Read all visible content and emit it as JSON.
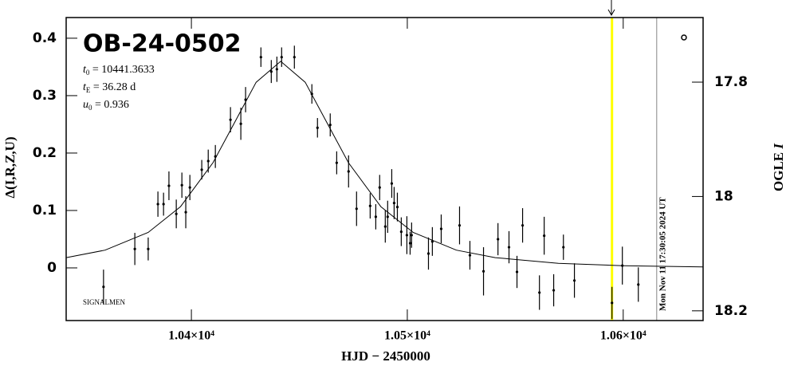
{
  "chart_data": {
    "type": "scatter",
    "title": "OB-24-0502",
    "params": [
      {
        "symbol": "t",
        "sub": "0",
        "text": " = 10441.3633"
      },
      {
        "symbol": "t",
        "sub": "E",
        "text": " = 36.28 d"
      },
      {
        "symbol": "u",
        "sub": "0",
        "text": " = 0.936"
      }
    ],
    "credit": "SIGNALMEN",
    "xlabel": "HJD − 2450000",
    "ylabel": "Δ(I,R,Z,U)",
    "y2label": {
      "text": "OGLE ",
      "italic": "I"
    },
    "xlim": [
      10342,
      10637
    ],
    "ylim": [
      -0.0917,
      0.436
    ],
    "y2lim": [
      18.217,
      17.687
    ],
    "xticks": [
      {
        "value": 10400,
        "label": "1.04×10⁴"
      },
      {
        "value": 10500,
        "label": "1.05×10⁴"
      },
      {
        "value": 10600,
        "label": "1.06×10⁴"
      }
    ],
    "yticks": [
      0,
      0.1,
      0.2,
      0.3,
      0.4
    ],
    "y2ticks": [
      17.8,
      18,
      18.2
    ],
    "series": [
      {
        "color": "#000000",
        "x": [
          10359.3,
          10373.8,
          10380.0,
          10384.5,
          10387.1,
          10389.6,
          10393.0,
          10395.6,
          10397.4,
          10399.3,
          10404.8,
          10407.8,
          10411.1,
          10418.1,
          10422.9,
          10425.1,
          10432.2,
          10437.0,
          10439.6,
          10441.8,
          10447.7,
          10455.8,
          10458.4,
          10464.3,
          10467.3,
          10472.8,
          10476.5,
          10482.8,
          10485.4,
          10487.2,
          10489.8,
          10490.9,
          10492.8,
          10493.9,
          10495.4,
          10497.2,
          10499.8,
          10501.3,
          10502.0,
          10509.8,
          10511.6,
          10515.7,
          10524.2,
          10529.0,
          10535.3,
          10542.0,
          10547.1,
          10550.8,
          10553.4,
          10561.2,
          10563.4,
          10567.8,
          10572.3,
          10577.4,
          10594.8,
          10599.6,
          10607.0
        ],
        "values": [
          -0.033,
          0.033,
          0.033,
          0.111,
          0.111,
          0.143,
          0.094,
          0.144,
          0.097,
          0.14,
          0.171,
          0.186,
          0.194,
          0.258,
          0.251,
          0.293,
          0.367,
          0.342,
          0.346,
          0.367,
          0.367,
          0.303,
          0.244,
          0.249,
          0.183,
          0.168,
          0.103,
          0.108,
          0.089,
          0.14,
          0.072,
          0.089,
          0.147,
          0.113,
          0.106,
          0.063,
          0.057,
          0.043,
          0.057,
          0.025,
          0.046,
          0.068,
          0.074,
          0.022,
          -0.006,
          0.05,
          0.036,
          -0.007,
          0.074,
          -0.043,
          0.056,
          -0.039,
          0.036,
          -0.022,
          -0.061,
          0.004,
          -0.029
        ],
        "errors": [
          0.03,
          0.028,
          0.02,
          0.022,
          0.02,
          0.025,
          0.025,
          0.022,
          0.028,
          0.022,
          0.017,
          0.02,
          0.02,
          0.022,
          0.028,
          0.022,
          0.017,
          0.02,
          0.022,
          0.017,
          0.02,
          0.017,
          0.017,
          0.02,
          0.02,
          0.028,
          0.03,
          0.022,
          0.022,
          0.022,
          0.028,
          0.028,
          0.025,
          0.028,
          0.025,
          0.025,
          0.033,
          0.02,
          0.022,
          0.028,
          0.025,
          0.025,
          0.033,
          0.025,
          0.042,
          0.028,
          0.028,
          0.028,
          0.03,
          0.03,
          0.033,
          0.028,
          0.022,
          0.03,
          0.028,
          0.033,
          0.03
        ]
      }
    ],
    "model": {
      "color": "#000000",
      "x": [
        10342,
        10360,
        10380,
        10395,
        10410,
        10420,
        10430,
        10441.36,
        10452.72,
        10462.72,
        10472.72,
        10487.72,
        10502.72,
        10522.72,
        10540.72,
        10570,
        10600,
        10637
      ],
      "values": [
        0.0178,
        0.0309,
        0.0617,
        0.1068,
        0.1833,
        0.2533,
        0.3232,
        0.3597,
        0.3232,
        0.2533,
        0.1833,
        0.1068,
        0.0617,
        0.0309,
        0.0178,
        0.008,
        0.0038,
        0.0017
      ]
    },
    "markers": [
      {
        "x": 10594.8,
        "color": "#ffff00"
      },
      {
        "x": 10615.5,
        "color": "#999999",
        "label": "Mon Nov 11 17:30:05 2024 UT"
      }
    ]
  }
}
